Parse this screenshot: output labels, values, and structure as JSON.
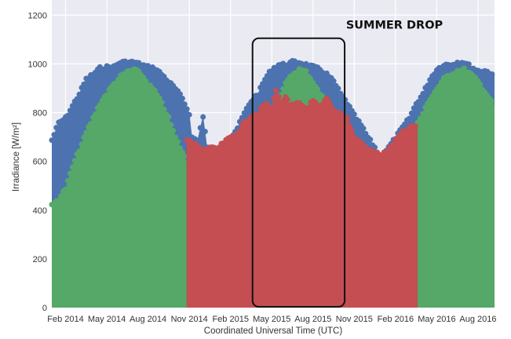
{
  "chart_data": {
    "type": "area",
    "title": "",
    "xlabel": "Coordinated Universal Time (UTC)",
    "ylabel": "Irradiance [W/m²]",
    "x_unit": "months since Jan 2014",
    "xlim": [
      0,
      32.2
    ],
    "ylim": [
      0,
      1262
    ],
    "grid": true,
    "legend": "none",
    "yticks": [
      0,
      200,
      400,
      600,
      800,
      1000,
      1200
    ],
    "xticks": [
      {
        "value": 1,
        "label": "Feb 2014"
      },
      {
        "value": 4,
        "label": "May 2014"
      },
      {
        "value": 7,
        "label": "Aug 2014"
      },
      {
        "value": 10,
        "label": "Nov 2014"
      },
      {
        "value": 13,
        "label": "Feb 2015"
      },
      {
        "value": 16,
        "label": "May 2015"
      },
      {
        "value": 19,
        "label": "Aug 2015"
      },
      {
        "value": 22,
        "label": "Nov 2015"
      },
      {
        "value": 25,
        "label": "Feb 2016"
      },
      {
        "value": 28,
        "label": "May 2016"
      },
      {
        "value": 31,
        "label": "Aug 2016"
      }
    ],
    "series": [
      {
        "color": "#4c72b0",
        "segments": [
          [
            [
              0,
              690
            ],
            [
              0.5,
              760
            ],
            [
              1,
              780
            ],
            [
              1.5,
              830
            ],
            [
              2,
              880
            ],
            [
              2.5,
              940
            ],
            [
              3,
              960
            ],
            [
              3.5,
              985
            ],
            [
              4,
              990
            ],
            [
              4.5,
              990
            ],
            [
              5,
              1010
            ],
            [
              6,
              1010
            ],
            [
              7,
              990
            ],
            [
              7.5,
              985
            ],
            [
              8,
              960
            ],
            [
              8.5,
              930
            ],
            [
              9,
              900
            ],
            [
              9.5,
              860
            ],
            [
              10,
              800
            ],
            [
              10.2,
              700
            ],
            [
              10.6,
              690
            ],
            [
              11,
              790
            ],
            [
              11.3,
              660
            ],
            [
              12,
              650
            ],
            [
              12.5,
              650
            ],
            [
              13,
              700
            ],
            [
              13.5,
              740
            ],
            [
              14,
              800
            ],
            [
              14.5,
              850
            ],
            [
              15,
              880
            ],
            [
              15.5,
              940
            ],
            [
              16,
              980
            ],
            [
              16.5,
              1000
            ],
            [
              17,
              1000
            ],
            [
              17.5,
              1010
            ],
            [
              18,
              1010
            ],
            [
              18.5,
              1000
            ],
            [
              19,
              990
            ],
            [
              19.5,
              980
            ],
            [
              20,
              960
            ],
            [
              20.5,
              930
            ],
            [
              21,
              880
            ],
            [
              21.5,
              840
            ],
            [
              22,
              790
            ],
            [
              22.5,
              750
            ],
            [
              23,
              700
            ],
            [
              23.5,
              660
            ],
            [
              23.8,
              620
            ],
            [
              24.5,
              660
            ],
            [
              25,
              700
            ],
            [
              25.5,
              740
            ],
            [
              26,
              780
            ],
            [
              26.5,
              840
            ],
            [
              27,
              880
            ],
            [
              27.5,
              940
            ],
            [
              28,
              980
            ],
            [
              28.5,
              1000
            ],
            [
              29,
              1000
            ],
            [
              29.5,
              1010
            ],
            [
              30,
              1010
            ],
            [
              30.5,
              990
            ],
            [
              31,
              975
            ],
            [
              31.5,
              975
            ],
            [
              32.2,
              960
            ]
          ]
        ]
      },
      {
        "color": "#55a868",
        "segments": [
          [
            [
              0,
              420
            ],
            [
              0.5,
              450
            ],
            [
              1,
              490
            ],
            [
              1.5,
              580
            ],
            [
              2,
              650
            ],
            [
              2.5,
              720
            ],
            [
              3,
              780
            ],
            [
              3.5,
              840
            ],
            [
              4,
              880
            ],
            [
              4.5,
              920
            ],
            [
              5,
              950
            ],
            [
              5.5,
              970
            ],
            [
              6,
              980
            ],
            [
              6.5,
              960
            ],
            [
              7,
              920
            ],
            [
              7.5,
              890
            ],
            [
              8,
              840
            ],
            [
              8.5,
              780
            ],
            [
              9,
              700
            ],
            [
              9.5,
              640
            ],
            [
              9.8,
              600
            ]
          ],
          [
            [
              15.8,
              800
            ],
            [
              16.5,
              860
            ],
            [
              17,
              920
            ],
            [
              17.5,
              960
            ],
            [
              18,
              980
            ],
            [
              18.5,
              970
            ],
            [
              19,
              930
            ],
            [
              19.5,
              880
            ],
            [
              20,
              840
            ],
            [
              20.5,
              800
            ]
          ],
          [
            [
              26.6,
              760
            ],
            [
              27,
              800
            ],
            [
              27.5,
              860
            ],
            [
              28,
              900
            ],
            [
              28.5,
              940
            ],
            [
              29,
              960
            ],
            [
              29.5,
              975
            ],
            [
              30,
              980
            ],
            [
              30.5,
              960
            ],
            [
              31,
              930
            ],
            [
              31.5,
              890
            ],
            [
              32.2,
              830
            ]
          ]
        ]
      },
      {
        "color": "#c44e52",
        "segments": [
          [
            [
              9.8,
              690
            ],
            [
              10.5,
              670
            ],
            [
              11,
              650
            ],
            [
              11.5,
              660
            ],
            [
              12,
              650
            ],
            [
              12.5,
              680
            ],
            [
              13,
              700
            ],
            [
              13.5,
              720
            ],
            [
              14,
              760
            ],
            [
              14.5,
              790
            ],
            [
              15,
              800
            ],
            [
              15.5,
              840
            ],
            [
              16,
              820
            ],
            [
              16.3,
              900
            ],
            [
              16.7,
              840
            ],
            [
              17,
              870
            ],
            [
              17.3,
              830
            ],
            [
              18,
              840
            ],
            [
              18.5,
              820
            ],
            [
              19,
              850
            ],
            [
              19.5,
              820
            ],
            [
              20,
              860
            ],
            [
              20.5,
              810
            ],
            [
              21,
              800
            ],
            [
              21.5,
              780
            ],
            [
              22,
              700
            ],
            [
              22.5,
              680
            ],
            [
              23,
              650
            ],
            [
              23.5,
              640
            ],
            [
              24,
              630
            ],
            [
              24.5,
              650
            ],
            [
              25,
              690
            ],
            [
              25.5,
              720
            ],
            [
              26,
              740
            ],
            [
              26.6,
              750
            ]
          ]
        ]
      }
    ],
    "annotations": [
      {
        "type": "rounded-box",
        "x0": 14.6,
        "x1": 21.3,
        "y0": 0,
        "y1": 1105
      },
      {
        "type": "text",
        "text": "SUMMER DROP",
        "x": 21.4,
        "y": 1145
      }
    ]
  }
}
